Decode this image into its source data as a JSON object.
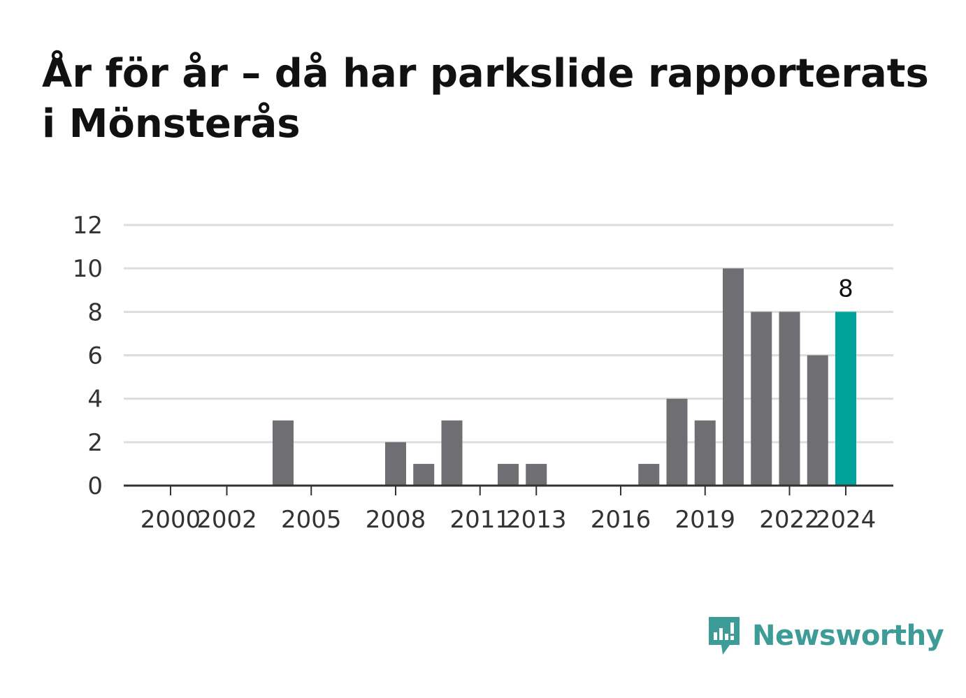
{
  "title": "År för år – då har parkslide rapporterats i Mönsterås",
  "brand": {
    "name": "Newsworthy",
    "color": "#3d9c97",
    "icon": "newsworthy-logo-icon"
  },
  "colors": {
    "bar": "#6e6e73",
    "highlight": "#00a39a",
    "grid": "#dddddd",
    "axis": "#333333"
  },
  "chart_data": {
    "type": "bar",
    "x": [
      2000,
      2001,
      2002,
      2003,
      2004,
      2005,
      2006,
      2007,
      2008,
      2009,
      2010,
      2011,
      2012,
      2013,
      2014,
      2015,
      2016,
      2017,
      2018,
      2019,
      2020,
      2021,
      2022,
      2023,
      2024
    ],
    "values": [
      0,
      0,
      0,
      0,
      3,
      0,
      0,
      0,
      2,
      1,
      3,
      0,
      1,
      1,
      0,
      0,
      0,
      1,
      4,
      3,
      10,
      8,
      8,
      6,
      8
    ],
    "highlight_year": 2024,
    "highlight_label": "8",
    "x_tick_labels": [
      "2000",
      "2002",
      "2005",
      "2008",
      "2011",
      "2013",
      "2016",
      "2019",
      "2022",
      "2024"
    ],
    "y_ticks": [
      0,
      2,
      4,
      6,
      8,
      10,
      12
    ],
    "ylim": [
      0,
      12
    ],
    "grid": true,
    "legend": "none",
    "xlabel": "",
    "ylabel": ""
  }
}
